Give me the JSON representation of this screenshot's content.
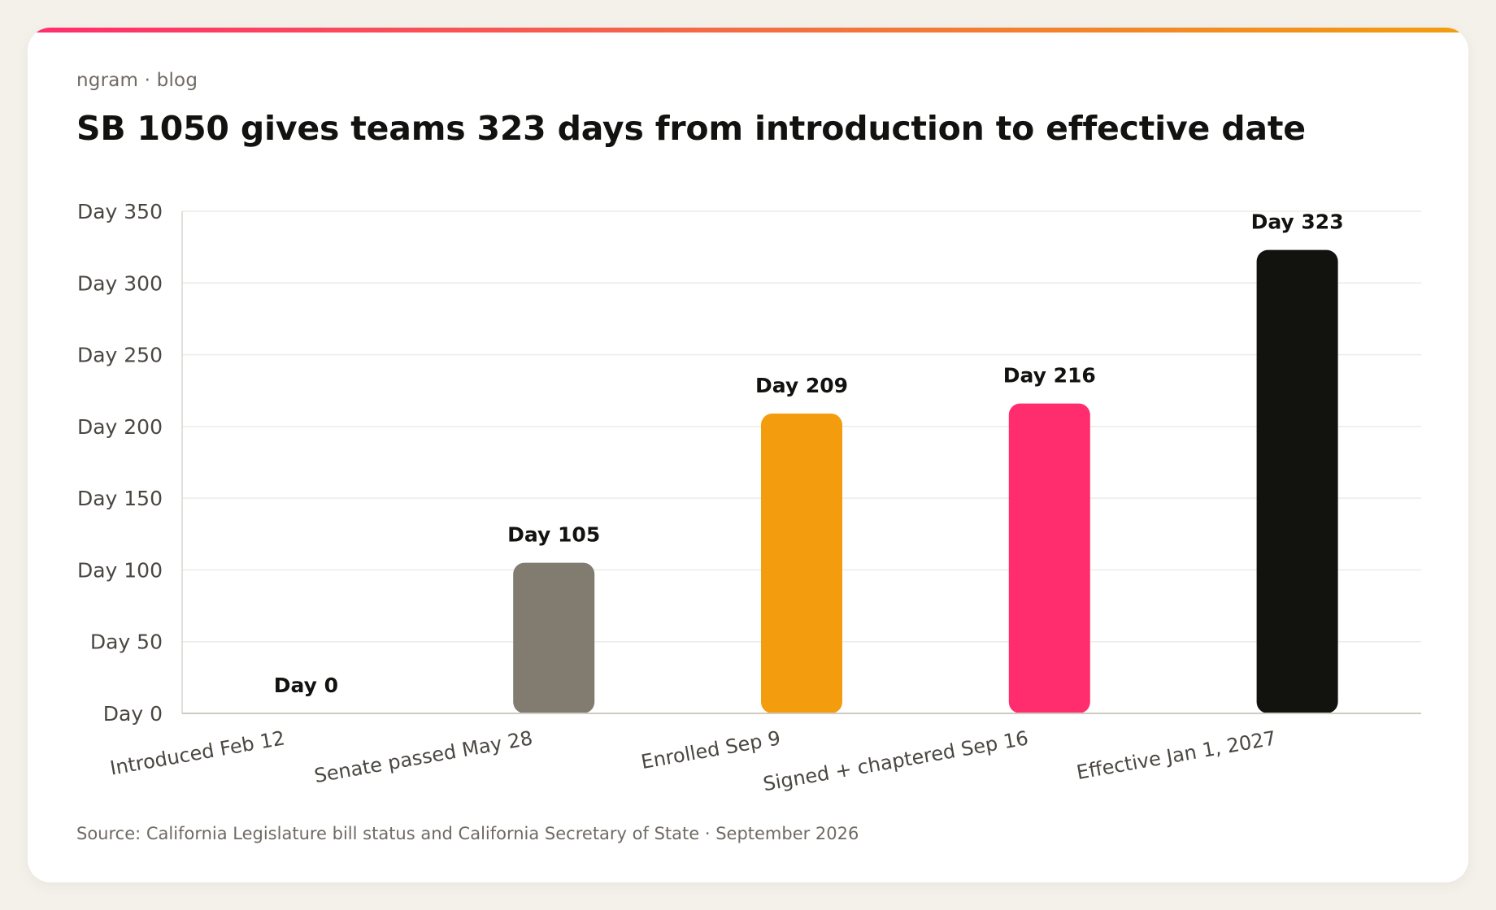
{
  "brand": "ngram · blog",
  "title": "SB 1050 gives teams 323 days from introduction to effective date",
  "source": "Source: California Legislature bill status and California Secretary of State · September 2026",
  "chart_data": {
    "type": "bar",
    "title": "SB 1050 gives teams 323 days from introduction to effective date",
    "xlabel": "",
    "ylabel": "",
    "categories": [
      "Introduced Feb 12",
      "Senate passed May 28",
      "Enrolled Sep 9",
      "Signed + chaptered Sep 16",
      "Effective Jan 1, 2027"
    ],
    "values": [
      0,
      105,
      209,
      216,
      323
    ],
    "data_labels": [
      "Day 0",
      "Day 105",
      "Day 209",
      "Day 216",
      "Day 323"
    ],
    "colors": [
      "#f39d0e",
      "#817b70",
      "#f39d0e",
      "#ff2d6e",
      "#12120f"
    ],
    "ylim": [
      0,
      350
    ],
    "yticks": [
      0,
      50,
      100,
      150,
      200,
      250,
      300,
      350
    ],
    "ytick_labels": [
      "Day 0",
      "Day 50",
      "Day 100",
      "Day 150",
      "Day 200",
      "Day 250",
      "Day 300",
      "Day 350"
    ],
    "grid": true,
    "legend": "none"
  }
}
